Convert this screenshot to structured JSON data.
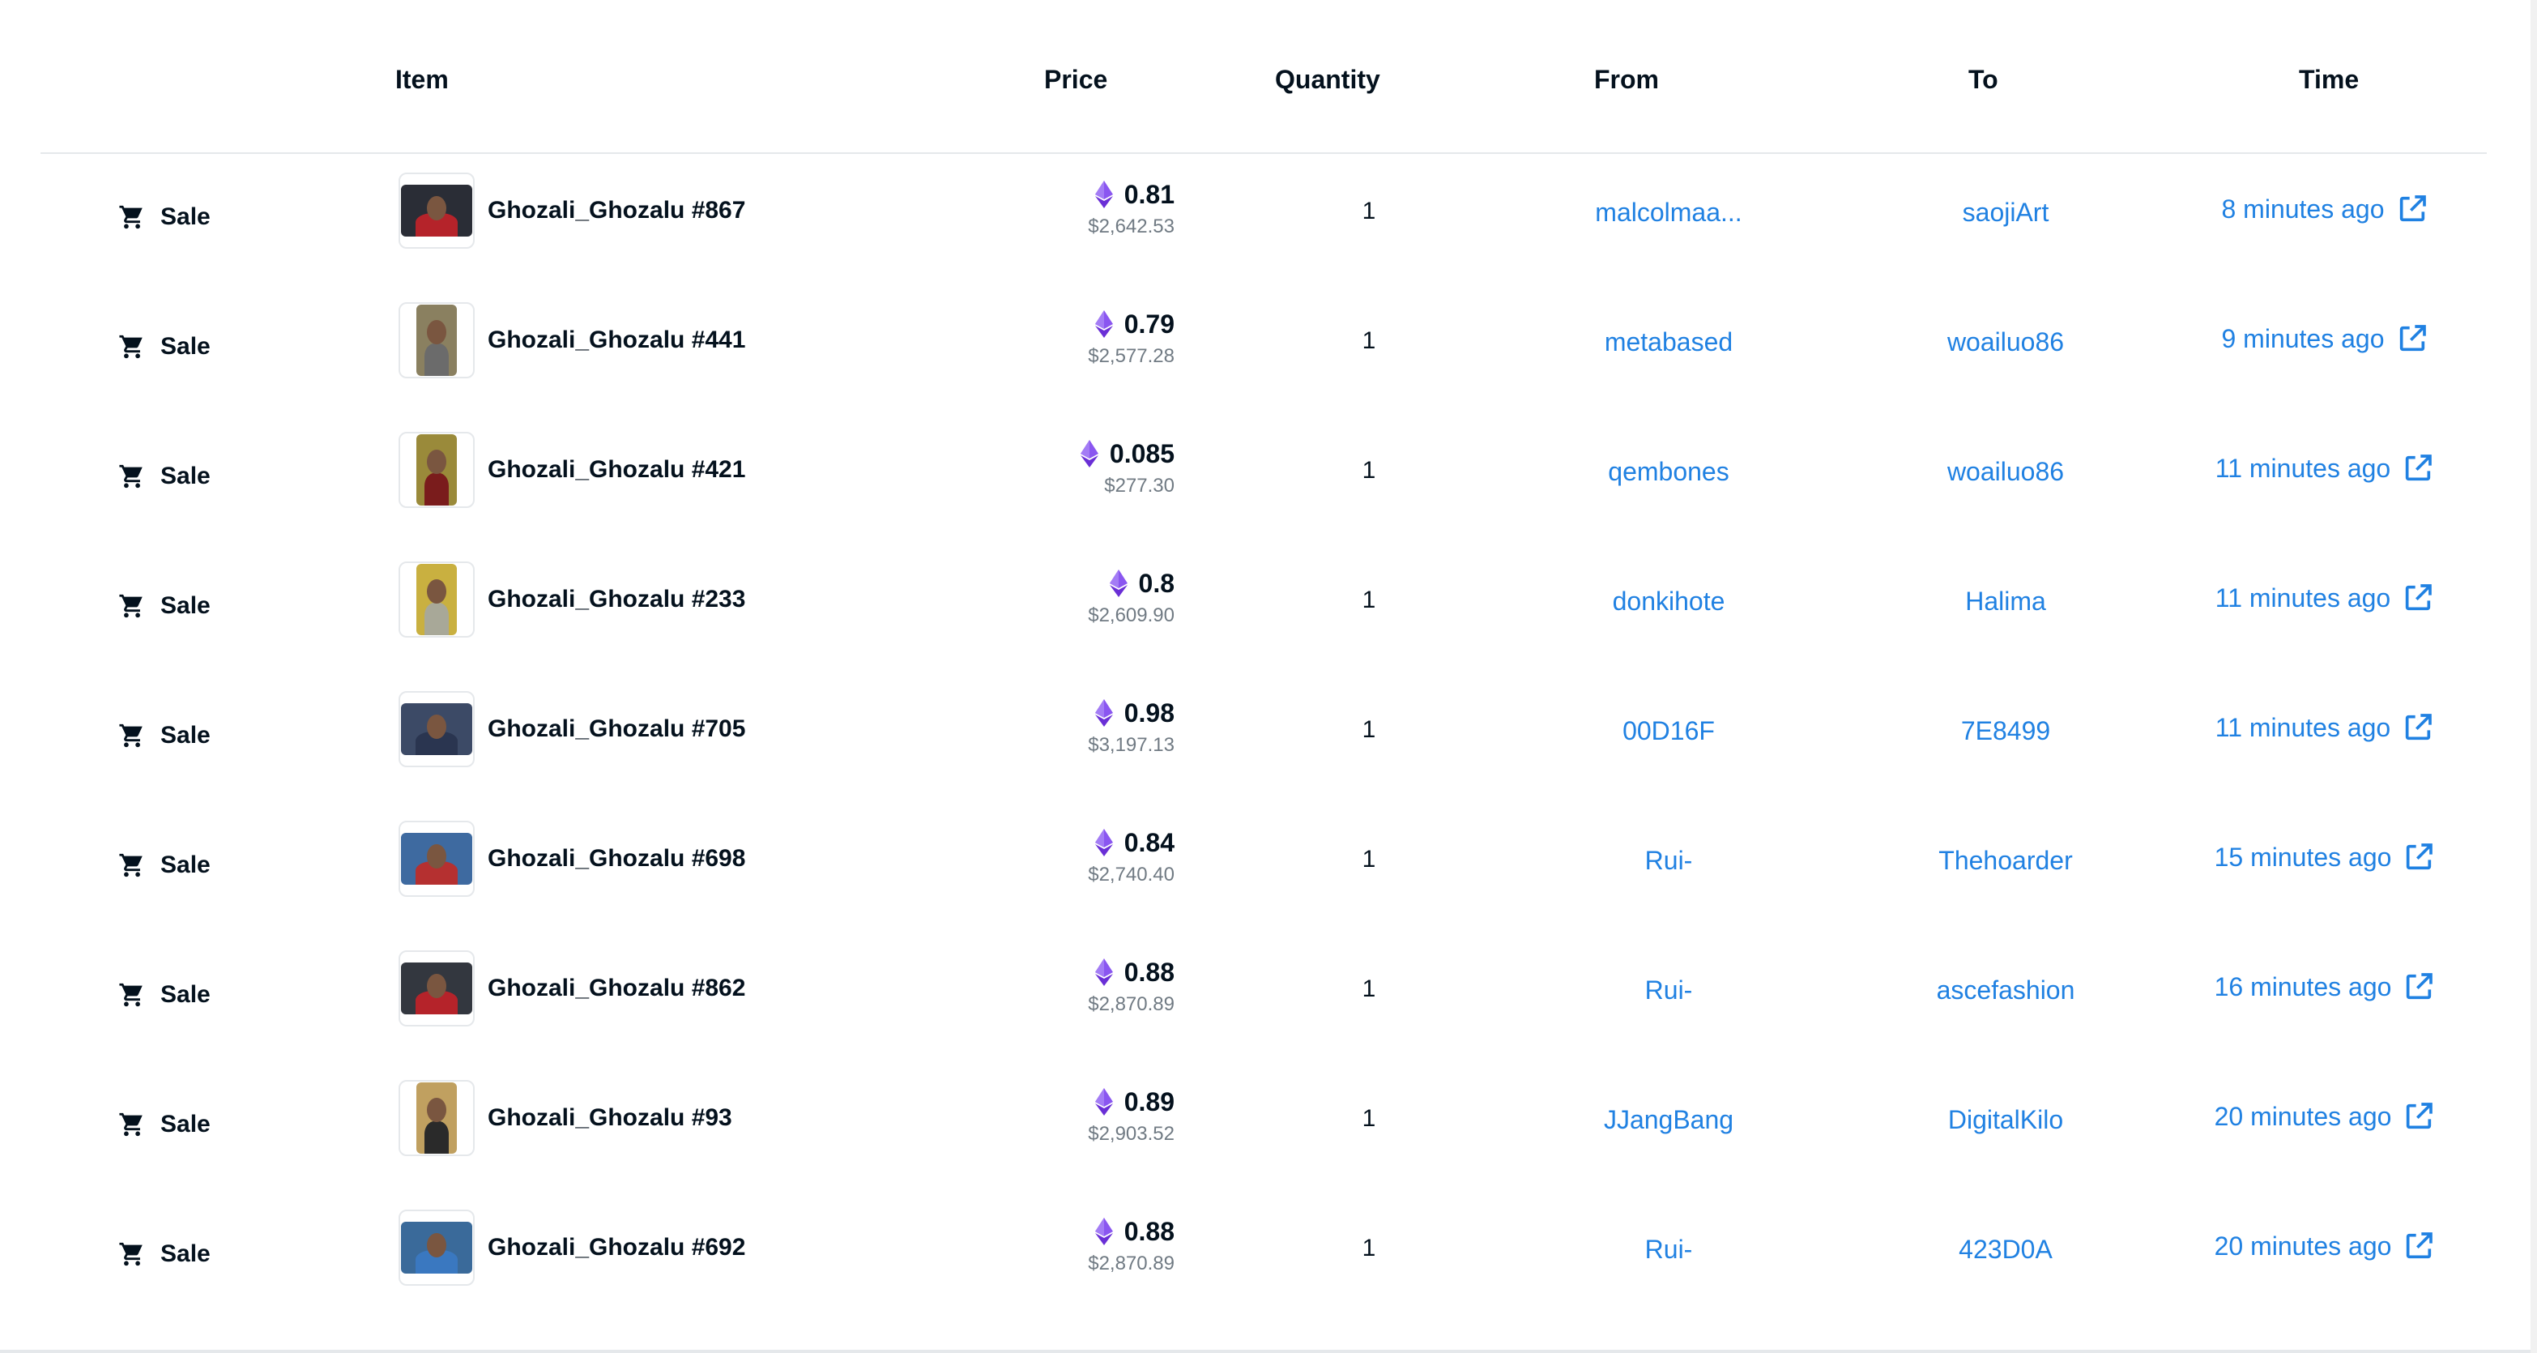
{
  "columns": {
    "item": "Item",
    "price": "Price",
    "quantity": "Quantity",
    "from": "From",
    "to": "To",
    "time": "Time"
  },
  "icons": {
    "event": "cart-icon",
    "currency": "ethereum-icon",
    "external": "external-link-icon"
  },
  "colors": {
    "link": "#2081e2",
    "eth": "#7b3fe4",
    "text": "#04111d",
    "muted": "#707a83"
  },
  "rows": [
    {
      "event": "Sale",
      "item": "Ghozali_Ghozalu #867",
      "eth": "0.81",
      "usd": "$2,642.53",
      "quantity": "1",
      "from": "malcolmaa...",
      "to": "saojiArt",
      "time": "8 minutes ago"
    },
    {
      "event": "Sale",
      "item": "Ghozali_Ghozalu #441",
      "eth": "0.79",
      "usd": "$2,577.28",
      "quantity": "1",
      "from": "metabased",
      "to": "woailuo86",
      "time": "9 minutes ago"
    },
    {
      "event": "Sale",
      "item": "Ghozali_Ghozalu #421",
      "eth": "0.085",
      "usd": "$277.30",
      "quantity": "1",
      "from": "qembones",
      "to": "woailuo86",
      "time": "11 minutes ago"
    },
    {
      "event": "Sale",
      "item": "Ghozali_Ghozalu #233",
      "eth": "0.8",
      "usd": "$2,609.90",
      "quantity": "1",
      "from": "donkihote",
      "to": "Halima",
      "time": "11 minutes ago"
    },
    {
      "event": "Sale",
      "item": "Ghozali_Ghozalu #705",
      "eth": "0.98",
      "usd": "$3,197.13",
      "quantity": "1",
      "from": "00D16F",
      "to": "7E8499",
      "time": "11 minutes ago"
    },
    {
      "event": "Sale",
      "item": "Ghozali_Ghozalu #698",
      "eth": "0.84",
      "usd": "$2,740.40",
      "quantity": "1",
      "from": "Rui-",
      "to": "Thehoarder",
      "time": "15 minutes ago"
    },
    {
      "event": "Sale",
      "item": "Ghozali_Ghozalu #862",
      "eth": "0.88",
      "usd": "$2,870.89",
      "quantity": "1",
      "from": "Rui-",
      "to": "ascefashion",
      "time": "16 minutes ago"
    },
    {
      "event": "Sale",
      "item": "Ghozali_Ghozalu #93",
      "eth": "0.89",
      "usd": "$2,903.52",
      "quantity": "1",
      "from": "JJangBang",
      "to": "DigitalKilo",
      "time": "20 minutes ago"
    },
    {
      "event": "Sale",
      "item": "Ghozali_Ghozalu #692",
      "eth": "0.88",
      "usd": "$2,870.89",
      "quantity": "1",
      "from": "Rui-",
      "to": "423D0A",
      "time": "20 minutes ago"
    }
  ]
}
